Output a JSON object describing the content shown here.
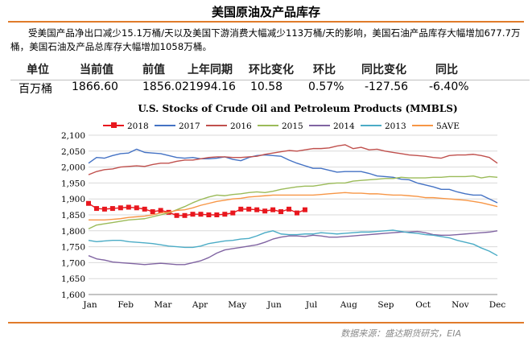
{
  "header": {
    "title": "美国原油及产品库存",
    "summary": "受美国产品净出口减少15.1万桶/天以及美国下游消费大幅减少113万桶/天的影响，美国石油产品库存大幅增加677.7万桶，美国石油及产品总库存大幅增加1058万桶。"
  },
  "stats": {
    "headers": [
      "单位",
      "当前值",
      "前值",
      "上年同期",
      "环比变化",
      "环比",
      "同比变化",
      "同比"
    ],
    "values": [
      "百万桶",
      "1866.60",
      "1856.02",
      "1994.16",
      "10.58",
      "0.57%",
      "-127.56",
      "-6.40%"
    ]
  },
  "footer": {
    "source": "数据来源：盛达期货研究，EIA"
  },
  "chart_data": {
    "type": "line",
    "title": "U.S.  Stocks of Crude Oil and Petroleum Products  (MMBLS)",
    "xlabel": "",
    "ylabel": "",
    "ylim": [
      1600,
      2100
    ],
    "yticks": [
      "1,600",
      "1,650",
      "1,700",
      "1,750",
      "1,800",
      "1,850",
      "1,900",
      "1,950",
      "2,000",
      "2,050",
      "2,100"
    ],
    "xticks": [
      "Jan",
      "Feb",
      "Mar",
      "Apr",
      "May",
      "Jun",
      "Jul",
      "Aug",
      "Sep",
      "Oct",
      "Nov",
      "Dec"
    ],
    "x_unit": "week of year",
    "grid": "horizontal",
    "legend_position": "top",
    "series": [
      {
        "name": "2018",
        "color": "#e8171e",
        "marker": "square",
        "values": [
          1886,
          1870,
          1868,
          1870,
          1872,
          1874,
          1872,
          1868,
          1860,
          1864,
          1858,
          1848,
          1848,
          1852,
          1852,
          1850,
          1850,
          1852,
          1856,
          1868,
          1868,
          1866,
          1862,
          1866,
          1860,
          1868,
          1856,
          1866
        ]
      },
      {
        "name": "2017",
        "color": "#4472c4",
        "values": [
          2012,
          2030,
          2028,
          2036,
          2042,
          2044,
          2056,
          2046,
          2044,
          2042,
          2036,
          2030,
          2028,
          2030,
          2026,
          2026,
          2028,
          2032,
          2024,
          2020,
          2030,
          2036,
          2038,
          2036,
          2034,
          2022,
          2012,
          2004,
          1996,
          1996,
          1990,
          1984,
          1986,
          1986,
          1986,
          1980,
          1972,
          1970,
          1968,
          1962,
          1960,
          1950,
          1944,
          1938,
          1930,
          1930,
          1922,
          1916,
          1912,
          1912,
          1900,
          1888
        ]
      },
      {
        "name": "2016",
        "color": "#c0504d",
        "values": [
          1976,
          1986,
          1992,
          1994,
          2000,
          2002,
          2004,
          2002,
          2008,
          2012,
          2012,
          2018,
          2022,
          2022,
          2026,
          2030,
          2032,
          2032,
          2030,
          2030,
          2032,
          2034,
          2040,
          2044,
          2048,
          2052,
          2050,
          2054,
          2058,
          2058,
          2060,
          2066,
          2070,
          2058,
          2062,
          2054,
          2056,
          2050,
          2046,
          2042,
          2038,
          2036,
          2034,
          2030,
          2028,
          2036,
          2038,
          2038,
          2040,
          2036,
          2030,
          2012
        ]
      },
      {
        "name": "2015",
        "color": "#9bbb59",
        "values": [
          1806,
          1818,
          1822,
          1826,
          1830,
          1834,
          1836,
          1838,
          1844,
          1850,
          1856,
          1866,
          1876,
          1888,
          1898,
          1906,
          1912,
          1910,
          1914,
          1916,
          1920,
          1922,
          1920,
          1924,
          1930,
          1934,
          1938,
          1940,
          1940,
          1944,
          1948,
          1950,
          1950,
          1956,
          1958,
          1960,
          1962,
          1964,
          1964,
          1968,
          1966,
          1966,
          1966,
          1968,
          1968,
          1970,
          1970,
          1970,
          1972,
          1966,
          1970,
          1968
        ]
      },
      {
        "name": "2014",
        "color": "#8064a2",
        "values": [
          1722,
          1712,
          1708,
          1702,
          1700,
          1698,
          1696,
          1694,
          1696,
          1698,
          1696,
          1694,
          1694,
          1700,
          1706,
          1716,
          1730,
          1740,
          1744,
          1748,
          1752,
          1756,
          1764,
          1774,
          1780,
          1784,
          1784,
          1782,
          1786,
          1784,
          1780,
          1780,
          1782,
          1784,
          1786,
          1788,
          1790,
          1792,
          1794,
          1796,
          1796,
          1798,
          1794,
          1788,
          1786,
          1786,
          1788,
          1790,
          1792,
          1794,
          1796,
          1800
        ]
      },
      {
        "name": "2013",
        "color": "#4bacc6",
        "values": [
          1770,
          1766,
          1768,
          1770,
          1770,
          1766,
          1764,
          1762,
          1760,
          1756,
          1752,
          1750,
          1748,
          1748,
          1752,
          1760,
          1764,
          1768,
          1770,
          1774,
          1776,
          1784,
          1794,
          1800,
          1790,
          1788,
          1788,
          1790,
          1790,
          1794,
          1792,
          1790,
          1792,
          1794,
          1796,
          1796,
          1798,
          1800,
          1802,
          1798,
          1794,
          1792,
          1788,
          1786,
          1782,
          1778,
          1770,
          1764,
          1758,
          1746,
          1736,
          1722
        ]
      },
      {
        "name": "5AVE",
        "color": "#f79646",
        "values": [
          1834,
          1834,
          1834,
          1836,
          1838,
          1842,
          1844,
          1846,
          1850,
          1856,
          1858,
          1864,
          1866,
          1872,
          1880,
          1886,
          1892,
          1896,
          1900,
          1902,
          1906,
          1908,
          1910,
          1912,
          1912,
          1912,
          1912,
          1912,
          1912,
          1914,
          1916,
          1918,
          1920,
          1918,
          1918,
          1916,
          1916,
          1914,
          1912,
          1912,
          1910,
          1908,
          1904,
          1904,
          1902,
          1900,
          1898,
          1896,
          1892,
          1888,
          1882,
          1876
        ]
      }
    ]
  }
}
